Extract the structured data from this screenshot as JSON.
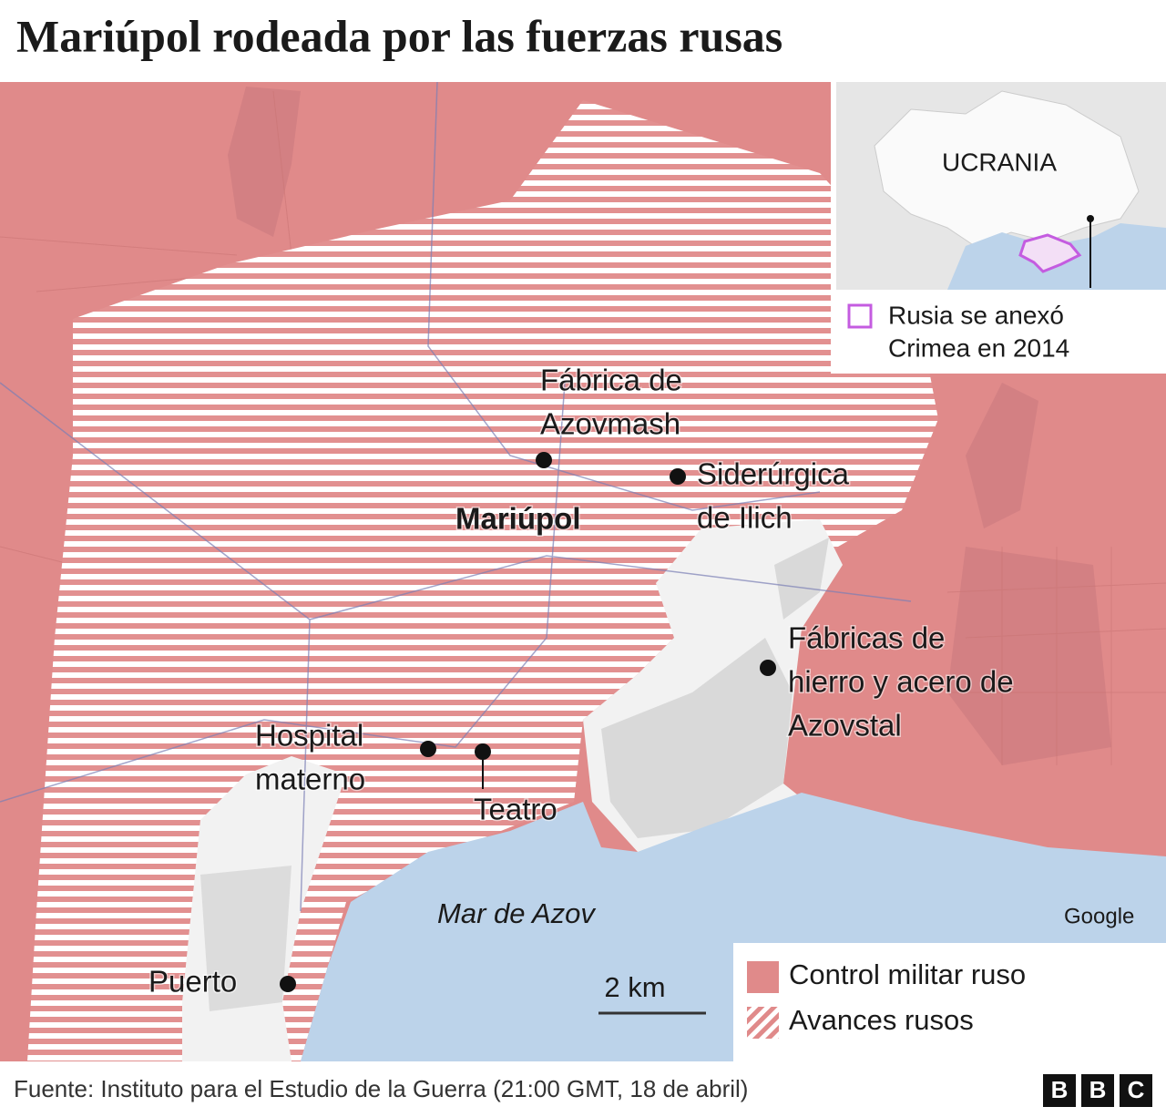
{
  "header": {
    "title": "Mariúpol rodeada por las fuerzas rusas"
  },
  "map": {
    "city": "Mariúpol",
    "places": [
      {
        "name": "azovmash",
        "lines": [
          "Fábrica de",
          "Azovmash"
        ]
      },
      {
        "name": "ilich",
        "lines": [
          "Siderúrgica",
          "de Ilich"
        ]
      },
      {
        "name": "azovstal",
        "lines": [
          "Fábricas de",
          "hierro y acero de",
          "Azovstal"
        ]
      },
      {
        "name": "hospital",
        "lines": [
          "Hospital",
          "materno"
        ]
      },
      {
        "name": "teatro",
        "lines": [
          "Teatro"
        ]
      },
      {
        "name": "puerto",
        "lines": [
          "Puerto"
        ]
      }
    ],
    "sea": "Mar de Azov",
    "scale": "2 km",
    "attribution": "Google"
  },
  "inset": {
    "country": "UCRANIA",
    "legend_lines": [
      "Rusia se anexó",
      "Crimea en 2014"
    ]
  },
  "legend": {
    "items": [
      "Control militar ruso",
      "Avances rusos"
    ]
  },
  "footer": {
    "source": "Fuente: Instituto para el Estudio de la Guerra (21:00 GMT, 18 de abril)",
    "logo": [
      "B",
      "B",
      "C"
    ]
  }
}
